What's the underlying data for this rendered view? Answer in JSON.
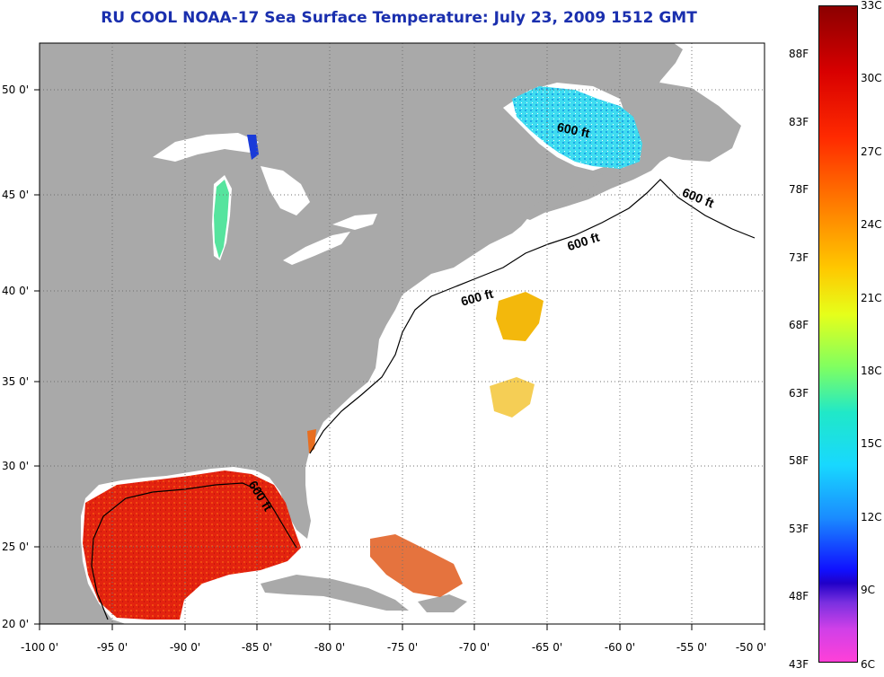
{
  "title": "RU COOL  NOAA-17  Sea Surface Temperature:  July 23, 2009 1512 GMT",
  "axes": {
    "x_ticks": [
      "-100 0'",
      "-95 0'",
      "-90 0'",
      "-85 0'",
      "-80 0'",
      "-75 0'",
      "-70 0'",
      "-65 0'",
      "-60 0'",
      "-55 0'",
      "-50 0'"
    ],
    "y_ticks": [
      "50 0'",
      "45 0'",
      "40 0'",
      "35 0'",
      "30 0'",
      "25 0'",
      "20 0'"
    ]
  },
  "contour_labels": [
    "600 ft",
    "600 ft",
    "600 ft",
    "600 ft",
    "600 ft"
  ],
  "colorbar": {
    "celsius": [
      "33C",
      "30C",
      "27C",
      "24C",
      "21C",
      "18C",
      "15C",
      "12C",
      "9C",
      "6C"
    ],
    "fahrenheit": [
      "88F",
      "83F",
      "78F",
      "73F",
      "68F",
      "63F",
      "58F",
      "53F",
      "48F",
      "43F"
    ]
  },
  "colors": {
    "land": "#a9a9a9",
    "ocean_no_data": "#ffffff",
    "title": "#1a2fae",
    "warm": "#e8200c",
    "cool": "#35d6ee"
  }
}
